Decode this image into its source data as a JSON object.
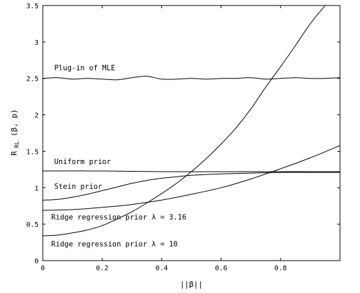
{
  "chart_data": {
    "type": "line",
    "title": "",
    "xlabel": "||β||",
    "ylabel": "R",
    "ylabel_sub": "RL",
    "ylabel_args": "(β, p)",
    "xlim": [
      0,
      1
    ],
    "ylim": [
      0,
      3.5
    ],
    "xticks": [
      "0",
      "0.2",
      "0.4",
      "0.6",
      "0.8"
    ],
    "xtick_values": [
      0,
      0.2,
      0.4,
      0.6,
      0.8
    ],
    "yticks": [
      "0",
      "0.5",
      "1",
      "1.5",
      "2",
      "2.5",
      "3",
      "3.5"
    ],
    "ytick_values": [
      0,
      0.5,
      1,
      1.5,
      2,
      2.5,
      3,
      3.5
    ],
    "grid": false,
    "series": [
      {
        "name": "Plug-in of MLE",
        "x": [
          0,
          0.05,
          0.1,
          0.15,
          0.2,
          0.25,
          0.3,
          0.35,
          0.4,
          0.45,
          0.5,
          0.55,
          0.6,
          0.65,
          0.7,
          0.75,
          0.8,
          0.85,
          0.9,
          0.95,
          1.0
        ],
        "y": [
          2.5,
          2.51,
          2.49,
          2.5,
          2.49,
          2.48,
          2.51,
          2.53,
          2.49,
          2.49,
          2.5,
          2.49,
          2.5,
          2.5,
          2.51,
          2.49,
          2.5,
          2.51,
          2.5,
          2.5,
          2.51
        ]
      },
      {
        "name": "Uniform prior",
        "x": [
          0,
          0.2,
          0.4,
          0.6,
          0.8,
          1.0
        ],
        "y": [
          1.23,
          1.23,
          1.22,
          1.22,
          1.22,
          1.22
        ]
      },
      {
        "name": "Stein prior",
        "x": [
          0,
          0.05,
          0.1,
          0.15,
          0.2,
          0.25,
          0.3,
          0.35,
          0.4,
          0.45,
          0.5,
          0.6,
          0.7,
          0.8,
          0.9,
          1.0
        ],
        "y": [
          0.83,
          0.84,
          0.87,
          0.91,
          0.96,
          1.01,
          1.06,
          1.1,
          1.13,
          1.15,
          1.17,
          1.19,
          1.2,
          1.21,
          1.21,
          1.21
        ]
      },
      {
        "name": "Ridge regression prior λ = 3.16",
        "x": [
          0,
          0.1,
          0.2,
          0.3,
          0.4,
          0.5,
          0.6,
          0.7,
          0.8,
          0.9,
          1.0
        ],
        "y": [
          0.69,
          0.7,
          0.73,
          0.77,
          0.83,
          0.91,
          1.0,
          1.12,
          1.26,
          1.41,
          1.58
        ]
      },
      {
        "name": "Ridge regression prior λ = 10",
        "x": [
          0,
          0.05,
          0.1,
          0.15,
          0.2,
          0.25,
          0.3,
          0.35,
          0.4,
          0.45,
          0.5,
          0.55,
          0.6,
          0.65,
          0.7,
          0.75,
          0.8,
          0.85,
          0.9,
          0.95
        ],
        "y": [
          0.34,
          0.35,
          0.38,
          0.42,
          0.48,
          0.57,
          0.67,
          0.79,
          0.92,
          1.06,
          1.22,
          1.4,
          1.6,
          1.82,
          2.08,
          2.38,
          2.66,
          2.95,
          3.25,
          3.5
        ]
      }
    ],
    "annotations": [
      {
        "text": "Plug-in of MLE",
        "x": 0.02,
        "y": 2.65
      },
      {
        "text": "Uniform prior",
        "x": 0.02,
        "y": 1.36
      },
      {
        "text": "Stein prior",
        "x": 0.02,
        "y": 1.02
      },
      {
        "text": "Ridge regression prior   λ = 3.16",
        "x": 0.01,
        "y": 0.6
      },
      {
        "text": "Ridge regression prior   λ = 10",
        "x": 0.01,
        "y": 0.23
      }
    ]
  }
}
